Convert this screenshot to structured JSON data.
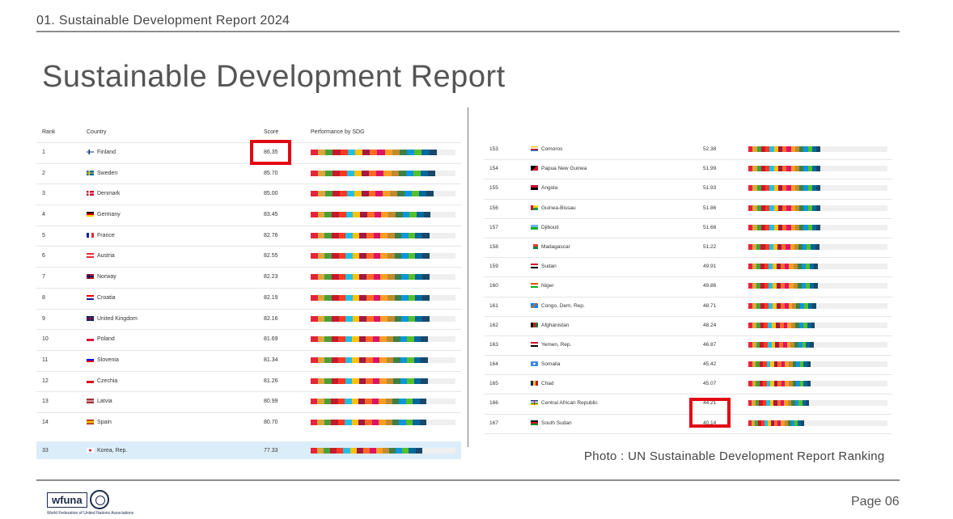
{
  "header": "01. Sustainable Development Report 2024",
  "title": "Sustainable Development Report",
  "left_table": {
    "headers": {
      "rank": "Rank",
      "country": "Country",
      "score": "Score",
      "performance": "Performance by SDG"
    },
    "rows": [
      {
        "rank": "1",
        "country": "Finland",
        "score": "86.35",
        "fill": 0.87
      },
      {
        "rank": "2",
        "country": "Sweden",
        "score": "85.70",
        "fill": 0.86
      },
      {
        "rank": "3",
        "country": "Denmark",
        "score": "85.00",
        "fill": 0.85
      },
      {
        "rank": "4",
        "country": "Germany",
        "score": "83.45",
        "fill": 0.83
      },
      {
        "rank": "5",
        "country": "France",
        "score": "82.76",
        "fill": 0.82
      },
      {
        "rank": "6",
        "country": "Austria",
        "score": "82.55",
        "fill": 0.82
      },
      {
        "rank": "7",
        "country": "Norway",
        "score": "82.23",
        "fill": 0.82
      },
      {
        "rank": "8",
        "country": "Croatia",
        "score": "82.19",
        "fill": 0.82
      },
      {
        "rank": "9",
        "country": "United Kingdom",
        "score": "82.16",
        "fill": 0.82
      },
      {
        "rank": "10",
        "country": "Poland",
        "score": "81.69",
        "fill": 0.81
      },
      {
        "rank": "11",
        "country": "Slovenia",
        "score": "81.34",
        "fill": 0.81
      },
      {
        "rank": "12",
        "country": "Czechia",
        "score": "81.26",
        "fill": 0.81
      },
      {
        "rank": "13",
        "country": "Latvia",
        "score": "80.99",
        "fill": 0.8
      },
      {
        "rank": "14",
        "country": "Spain",
        "score": "80.70",
        "fill": 0.8
      }
    ],
    "highlight_row": {
      "rank": "33",
      "country": "Korea, Rep.",
      "score": "77.33",
      "fill": 0.77
    }
  },
  "right_table": {
    "rows": [
      {
        "rank": "153",
        "country": "Comoros",
        "score": "52.38",
        "fill": 0.52
      },
      {
        "rank": "154",
        "country": "Papua New Guinea",
        "score": "51.99",
        "fill": 0.52
      },
      {
        "rank": "155",
        "country": "Angola",
        "score": "51.93",
        "fill": 0.52
      },
      {
        "rank": "156",
        "country": "Guinea-Bissau",
        "score": "51.86",
        "fill": 0.52
      },
      {
        "rank": "157",
        "country": "Djibouti",
        "score": "51.68",
        "fill": 0.52
      },
      {
        "rank": "158",
        "country": "Madagascar",
        "score": "51.22",
        "fill": 0.51
      },
      {
        "rank": "159",
        "country": "Sudan",
        "score": "49.91",
        "fill": 0.5
      },
      {
        "rank": "160",
        "country": "Niger",
        "score": "49.86",
        "fill": 0.5
      },
      {
        "rank": "161",
        "country": "Congo, Dem. Rep.",
        "score": "48.71",
        "fill": 0.49
      },
      {
        "rank": "162",
        "country": "Afghanistan",
        "score": "48.24",
        "fill": 0.48
      },
      {
        "rank": "163",
        "country": "Yemen, Rep.",
        "score": "46.87",
        "fill": 0.47
      },
      {
        "rank": "164",
        "country": "Somalia",
        "score": "45.42",
        "fill": 0.45
      },
      {
        "rank": "165",
        "country": "Chad",
        "score": "45.07",
        "fill": 0.45
      },
      {
        "rank": "166",
        "country": "Central African Republic",
        "score": "44.21",
        "fill": 0.44
      },
      {
        "rank": "167",
        "country": "South Sudan",
        "score": "40.14",
        "fill": 0.4
      }
    ]
  },
  "sdg_colors": [
    "#e5243b",
    "#dda63a",
    "#4c9f38",
    "#c5192d",
    "#ff3a21",
    "#26bde2",
    "#fcc30b",
    "#a21942",
    "#fd6925",
    "#dd1367",
    "#fd9d24",
    "#bf8b2e",
    "#3f7e44",
    "#0a97d9",
    "#56c02b",
    "#00689d",
    "#19486a"
  ],
  "highlight_color": "#e30613",
  "caption": "Photo : UN  Sustainable Development Report Ranking",
  "logo": {
    "word": "wfuna",
    "subtitle": "World Federation of United Nations Associations"
  },
  "page_label": "Page 06"
}
